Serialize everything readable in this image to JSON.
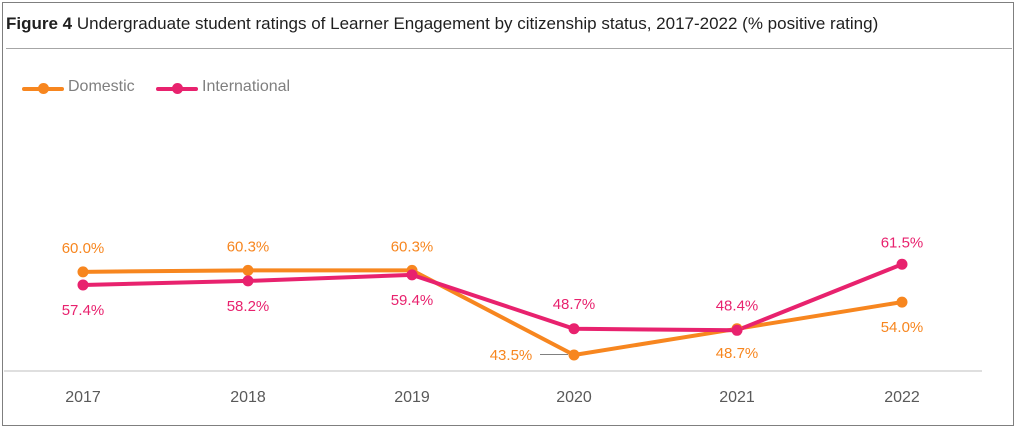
{
  "figure": {
    "label": "Figure 4",
    "title": "Undergraduate student ratings of Learner Engagement by citizenship status, 2017-2022 (% positive rating)"
  },
  "chart_data": {
    "type": "line",
    "title": "Figure 4 Undergraduate student ratings of Learner Engagement by citizenship status, 2017-2022 (% positive rating)",
    "xlabel": "",
    "ylabel": "",
    "categories": [
      "2017",
      "2018",
      "2019",
      "2020",
      "2021",
      "2022"
    ],
    "series": [
      {
        "name": "Domestic",
        "color": "#f7861f",
        "values": [
          60.0,
          60.3,
          60.3,
          43.5,
          48.7,
          54.0
        ],
        "labels": [
          "60.0%",
          "60.3%",
          "60.3%",
          "43.5%",
          "48.7%",
          "54.0%"
        ]
      },
      {
        "name": "International",
        "color": "#e8226e",
        "values": [
          57.4,
          58.2,
          59.4,
          48.7,
          48.4,
          61.5
        ],
        "labels": [
          "57.4%",
          "58.2%",
          "59.4%",
          "48.7%",
          "48.4%",
          "61.5%"
        ]
      }
    ],
    "ylim": [
      40,
      65
    ],
    "grid": false,
    "legend": "top-left"
  }
}
